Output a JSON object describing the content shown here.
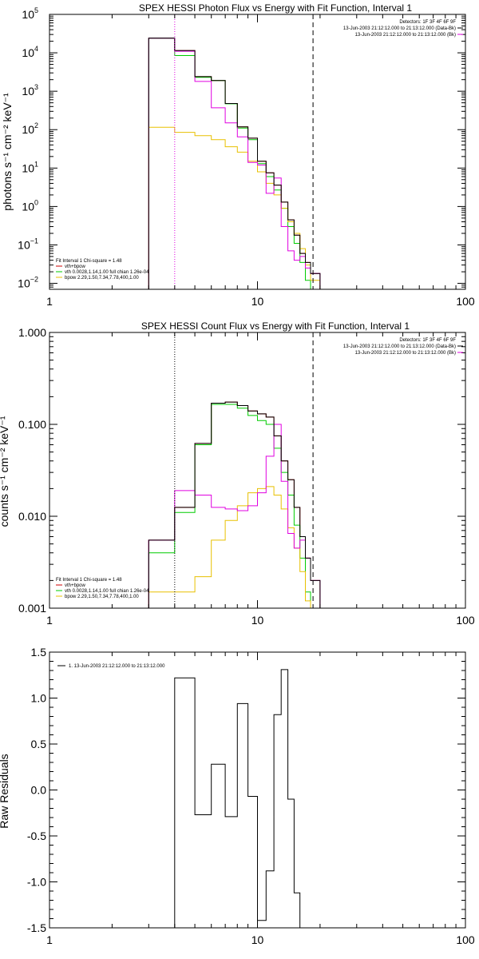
{
  "colors": {
    "background": "#ffffff",
    "axes": "#000000",
    "total": "#cc0000",
    "vth": "#00cc00",
    "bpow": "#e8c000",
    "model": "#e000e0",
    "data": "#000000"
  },
  "chart_data": [
    {
      "type": "line",
      "step": true,
      "title": "SPEX HESSI Photon Flux vs Energy with Fit Function, Interval 1",
      "xlabel": "",
      "ylabel": "photons s⁻¹ cm⁻² keV⁻¹",
      "xscale": "log",
      "yscale": "log",
      "xlim": [
        1,
        100
      ],
      "ylim": [
        0.007,
        100000
      ],
      "xticks": [
        {
          "value": 1,
          "label": "1"
        },
        {
          "value": 10,
          "label": "10"
        },
        {
          "value": 100,
          "label": "100"
        }
      ],
      "yticks": [
        {
          "value": 0.01,
          "base": "10",
          "exp": "−2"
        },
        {
          "value": 0.1,
          "base": "10",
          "exp": "−1"
        },
        {
          "value": 1,
          "base": "10",
          "exp": "0"
        },
        {
          "value": 10,
          "base": "10",
          "exp": "1"
        },
        {
          "value": 100,
          "base": "10",
          "exp": "2"
        },
        {
          "value": 1000,
          "base": "10",
          "exp": "3"
        },
        {
          "value": 10000,
          "base": "10",
          "exp": "4"
        },
        {
          "value": 100000,
          "base": "10",
          "exp": "5"
        }
      ],
      "vlines": [
        {
          "x": 4,
          "style": "dotted",
          "color": "#e000e0"
        },
        {
          "x": 18.5,
          "style": "dashed",
          "color": "#000000"
        }
      ],
      "annotations": [
        "Detectors: 1F 3F 4F 6F 9F",
        "13-Jun-2003 21:12:12.000 to 21:13:12.000 (Data-Bk)",
        "13-Jun-2003 21:12:12.000 to 21:13:12.000 (Bk)"
      ],
      "legend": [
        "Fit Interval 1    Chi-square = 1.48",
        "vth+bpow",
        "vth 0.0028,1.14,1.00  full chian 1.26e-04",
        "bpow 2.29,1.50,7.34,7.78,400,1.00"
      ],
      "edges": [
        3,
        4,
        5,
        6,
        7,
        8,
        9,
        10,
        11,
        12,
        13,
        14,
        15,
        16,
        17,
        18,
        20
      ],
      "series": [
        {
          "name": "vth+bpow",
          "color": "#cc0000",
          "values": [
            24000,
            11500,
            2400,
            1900,
            480,
            118,
            60,
            15,
            7.5,
            3.6,
            1.3,
            0.45,
            0.18,
            0.06,
            0.035,
            0.018
          ]
        },
        {
          "name": "vth",
          "color": "#00cc00",
          "values": [
            24000,
            8500,
            2300,
            1900,
            470,
            110,
            55,
            13,
            6.0,
            2.7,
            0.9,
            0.3,
            0.11,
            0.035,
            0.012,
            0.006
          ]
        },
        {
          "name": "bpow",
          "color": "#e8c000",
          "values": [
            115,
            85,
            70,
            55,
            36,
            26,
            15,
            8.0,
            4.0,
            2.0,
            0.9,
            0.4,
            0.2,
            0.08,
            0.03,
            0.012
          ]
        },
        {
          "color": "#e000e0",
          "values": [
            24000,
            11000,
            1800,
            370,
            150,
            65,
            14,
            12,
            2.2,
            5.5,
            0.3,
            0.07,
            0.04,
            0.05,
            0.025,
            0.018
          ]
        },
        {
          "color": "#000000",
          "values": [
            24000,
            11500,
            2400,
            1900,
            480,
            118,
            60,
            15,
            7.5,
            3.6,
            1.3,
            0.45,
            0.18,
            0.06,
            0.035,
            0.018
          ]
        }
      ]
    },
    {
      "type": "line",
      "step": true,
      "title": "SPEX HESSI Count Flux vs Energy with Fit Function, Interval 1",
      "xlabel": "",
      "ylabel": "counts s⁻¹ cm⁻² keV⁻¹",
      "xscale": "log",
      "yscale": "log",
      "xlim": [
        1,
        100
      ],
      "ylim": [
        0.001,
        1
      ],
      "xticks": [
        {
          "value": 1,
          "label": "1"
        },
        {
          "value": 10,
          "label": "10"
        },
        {
          "value": 100,
          "label": "100"
        }
      ],
      "yticks": [
        {
          "value": 0.001,
          "label": "0.001"
        },
        {
          "value": 0.01,
          "label": "0.010"
        },
        {
          "value": 0.1,
          "label": "0.100"
        },
        {
          "value": 1,
          "label": "1.000"
        }
      ],
      "vlines": [
        {
          "x": 4,
          "style": "dotted",
          "color": "#000000"
        },
        {
          "x": 18.5,
          "style": "dashed",
          "color": "#000000"
        }
      ],
      "annotations": [
        "Detectors: 1F 3F 4F 6F 9F",
        "13-Jun-2003 21:12:12.000 to 21:13:12.000 (Data-Bk)",
        "13-Jun-2003 21:12:12.000 to 21:13:12.000 (Bk)"
      ],
      "legend": [
        "Fit Interval 1    Chi-square = 1.48",
        "vth+bpow",
        "vth 0.0028,1.14,1.00  full chian 1.26e-04",
        "bpow 2.29,1.50,7.34,7.78,400,1.00"
      ],
      "edges": [
        3,
        4,
        5,
        6,
        7,
        8,
        9,
        10,
        11,
        12,
        13,
        14,
        15,
        16,
        17,
        18,
        20
      ],
      "series": [
        {
          "name": "vth+bpow",
          "color": "#cc0000",
          "values": [
            0.0055,
            0.0125,
            0.062,
            0.17,
            0.175,
            0.16,
            0.14,
            0.13,
            0.12,
            0.075,
            0.04,
            0.025,
            0.0125,
            0.006,
            0.0035,
            0.002
          ]
        },
        {
          "name": "vth",
          "color": "#00cc00",
          "values": [
            0.004,
            0.011,
            0.06,
            0.165,
            0.165,
            0.15,
            0.125,
            0.11,
            0.1,
            0.055,
            0.03,
            0.017,
            0.008,
            0.0035,
            0.0015,
            0.0008
          ]
        },
        {
          "name": "bpow",
          "color": "#e8c000",
          "values": [
            0.0015,
            0.0015,
            0.0022,
            0.0055,
            0.009,
            0.013,
            0.018,
            0.02,
            0.021,
            0.017,
            0.012,
            0.0075,
            0.0045,
            0.0025,
            0.0012,
            0.0006
          ]
        },
        {
          "color": "#e000e0",
          "values": [
            0.0055,
            0.019,
            0.017,
            0.0125,
            0.012,
            0.0115,
            0.013,
            0.018,
            0.045,
            0.1,
            0.024,
            0.0065,
            0.0045,
            0.0055,
            0.0035,
            0.002
          ]
        },
        {
          "color": "#000000",
          "values": [
            0.0055,
            0.0125,
            0.062,
            0.17,
            0.175,
            0.16,
            0.14,
            0.13,
            0.12,
            0.075,
            0.04,
            0.025,
            0.0125,
            0.006,
            0.0035,
            0.002
          ]
        }
      ]
    },
    {
      "type": "line",
      "step": true,
      "title": "",
      "xlabel": "",
      "ylabel": "Raw Residuals",
      "xscale": "log",
      "yscale": "linear",
      "xlim": [
        1,
        100
      ],
      "ylim": [
        -1.5,
        1.5
      ],
      "xticks": [
        {
          "value": 1,
          "label": "1"
        },
        {
          "value": 10,
          "label": "10"
        },
        {
          "value": 100,
          "label": "100"
        }
      ],
      "yticks": [
        {
          "value": -1.5,
          "label": "-1.5"
        },
        {
          "value": -1.0,
          "label": "-1.0"
        },
        {
          "value": -0.5,
          "label": "-0.5"
        },
        {
          "value": 0.0,
          "label": "0.0"
        },
        {
          "value": 0.5,
          "label": "0.5"
        },
        {
          "value": 1.0,
          "label": "1.0"
        },
        {
          "value": 1.5,
          "label": "1.5"
        }
      ],
      "legend": [
        "1. 13-Jun-2003 21:12:12.000 to 21:13:12.000"
      ],
      "edges": [
        4,
        5,
        6,
        7,
        8,
        9,
        10,
        11,
        12,
        13,
        14,
        15,
        16,
        18
      ],
      "series": [
        {
          "color": "#000000",
          "values": [
            1.22,
            -0.27,
            0.28,
            -0.29,
            0.94,
            -0.07,
            -1.42,
            -0.88,
            0.82,
            1.31,
            -0.1,
            -1.12,
            -1.5
          ]
        }
      ]
    }
  ]
}
